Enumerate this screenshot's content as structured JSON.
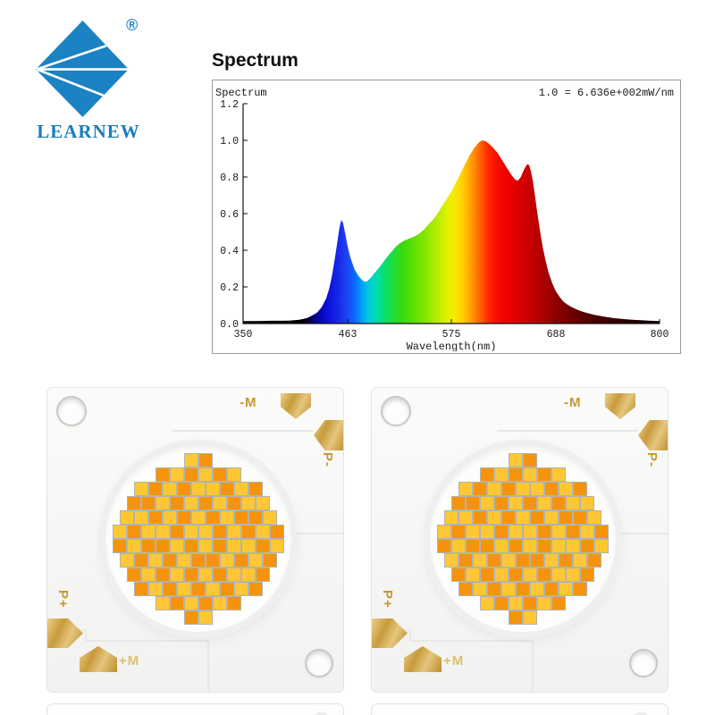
{
  "logo": {
    "text": "LEARNEW",
    "registered_mark": "®",
    "brand_color": "#1b80c2"
  },
  "spectrum_section": {
    "title": "Spectrum"
  },
  "chart_data": {
    "type": "area",
    "title": "Spectrum",
    "corner_label": "Spectrum",
    "annotation": "1.0 = 6.636e+002mW/nm",
    "xlabel": "Wavelength(nm)",
    "x_ticks": [
      350,
      463,
      575,
      688,
      800
    ],
    "y_ticks": [
      0.0,
      0.2,
      0.4,
      0.6,
      0.8,
      1.0,
      1.2
    ],
    "xlim": [
      350,
      800
    ],
    "ylim": [
      0,
      1.2
    ],
    "grid": false,
    "points": [
      [
        350,
        0.013
      ],
      [
        360,
        0.013
      ],
      [
        370,
        0.014
      ],
      [
        380,
        0.015
      ],
      [
        390,
        0.015
      ],
      [
        400,
        0.016
      ],
      [
        405,
        0.018
      ],
      [
        410,
        0.02
      ],
      [
        415,
        0.025
      ],
      [
        420,
        0.032
      ],
      [
        425,
        0.045
      ],
      [
        430,
        0.06
      ],
      [
        435,
        0.09
      ],
      [
        440,
        0.14
      ],
      [
        443,
        0.19
      ],
      [
        446,
        0.26
      ],
      [
        449,
        0.35
      ],
      [
        452,
        0.45
      ],
      [
        454,
        0.52
      ],
      [
        456,
        0.565
      ],
      [
        458,
        0.55
      ],
      [
        460,
        0.5
      ],
      [
        463,
        0.42
      ],
      [
        466,
        0.36
      ],
      [
        470,
        0.3
      ],
      [
        474,
        0.265
      ],
      [
        478,
        0.24
      ],
      [
        481,
        0.228
      ],
      [
        484,
        0.23
      ],
      [
        488,
        0.25
      ],
      [
        492,
        0.275
      ],
      [
        496,
        0.3
      ],
      [
        500,
        0.325
      ],
      [
        505,
        0.36
      ],
      [
        510,
        0.39
      ],
      [
        515,
        0.42
      ],
      [
        520,
        0.44
      ],
      [
        525,
        0.455
      ],
      [
        530,
        0.465
      ],
      [
        535,
        0.475
      ],
      [
        540,
        0.49
      ],
      [
        545,
        0.51
      ],
      [
        550,
        0.54
      ],
      [
        555,
        0.565
      ],
      [
        560,
        0.6
      ],
      [
        565,
        0.64
      ],
      [
        570,
        0.68
      ],
      [
        575,
        0.72
      ],
      [
        580,
        0.77
      ],
      [
        585,
        0.82
      ],
      [
        590,
        0.87
      ],
      [
        595,
        0.92
      ],
      [
        600,
        0.96
      ],
      [
        605,
        0.99
      ],
      [
        608,
        1.0
      ],
      [
        612,
        0.995
      ],
      [
        616,
        0.98
      ],
      [
        620,
        0.96
      ],
      [
        625,
        0.93
      ],
      [
        630,
        0.89
      ],
      [
        635,
        0.85
      ],
      [
        640,
        0.81
      ],
      [
        644,
        0.785
      ],
      [
        647,
        0.78
      ],
      [
        650,
        0.8
      ],
      [
        654,
        0.845
      ],
      [
        657,
        0.87
      ],
      [
        659,
        0.865
      ],
      [
        661,
        0.83
      ],
      [
        663,
        0.78
      ],
      [
        665,
        0.71
      ],
      [
        668,
        0.6
      ],
      [
        671,
        0.5
      ],
      [
        674,
        0.41
      ],
      [
        677,
        0.34
      ],
      [
        680,
        0.28
      ],
      [
        684,
        0.22
      ],
      [
        688,
        0.175
      ],
      [
        692,
        0.145
      ],
      [
        696,
        0.12
      ],
      [
        700,
        0.105
      ],
      [
        705,
        0.09
      ],
      [
        710,
        0.078
      ],
      [
        715,
        0.068
      ],
      [
        720,
        0.06
      ],
      [
        730,
        0.047
      ],
      [
        740,
        0.038
      ],
      [
        750,
        0.03
      ],
      [
        760,
        0.025
      ],
      [
        770,
        0.021
      ],
      [
        780,
        0.018
      ],
      [
        790,
        0.015
      ],
      [
        800,
        0.013
      ]
    ],
    "gradient_stops": [
      [
        350,
        "#000000"
      ],
      [
        415,
        "#000005"
      ],
      [
        428,
        "#05058a"
      ],
      [
        438,
        "#0a0ad0"
      ],
      [
        450,
        "#1520e8"
      ],
      [
        460,
        "#1e3cf0"
      ],
      [
        470,
        "#0a64ff"
      ],
      [
        478,
        "#00a0f8"
      ],
      [
        486,
        "#00ccdc"
      ],
      [
        494,
        "#00dcae"
      ],
      [
        502,
        "#06de72"
      ],
      [
        512,
        "#1ede3a"
      ],
      [
        522,
        "#38da10"
      ],
      [
        535,
        "#5ee000"
      ],
      [
        548,
        "#8ce600"
      ],
      [
        560,
        "#b8ec00"
      ],
      [
        570,
        "#dff000"
      ],
      [
        578,
        "#f8ea00"
      ],
      [
        586,
        "#ffd400"
      ],
      [
        593,
        "#ffb200"
      ],
      [
        600,
        "#ff8a00"
      ],
      [
        607,
        "#ff5c00"
      ],
      [
        614,
        "#ff2e00"
      ],
      [
        622,
        "#fc1000"
      ],
      [
        632,
        "#f00200"
      ],
      [
        645,
        "#e00000"
      ],
      [
        658,
        "#cc0000"
      ],
      [
        670,
        "#b40000"
      ],
      [
        682,
        "#9a0000"
      ],
      [
        695,
        "#800000"
      ],
      [
        710,
        "#660000"
      ],
      [
        730,
        "#4a0000"
      ],
      [
        755,
        "#300000"
      ],
      [
        778,
        "#1c0000"
      ],
      [
        800,
        "#0e0000"
      ]
    ]
  },
  "pcb": {
    "labels": {
      "minus_m": "-M",
      "p_minus": "P-",
      "p_plus": "P+",
      "plus_m": "+M"
    },
    "colors": {
      "die_orange": "#f5940c",
      "die_yellow": "#fec733",
      "gold_text": "#c59833",
      "gold_text_light": "#dcc06c"
    },
    "die_rows": [
      "YO",
      "OYOYOY",
      "YOYOYYOYO",
      "OOYOYOYOYY",
      "YYOYOYOYOOY",
      "YOYYOYYOYOYO",
      "OYOOYOYOYYOY",
      "YOYOYOOYOYO",
      "OYOYOYOYYO",
      "OYOYOYOYO",
      "YOYOYO",
      "OY"
    ]
  }
}
